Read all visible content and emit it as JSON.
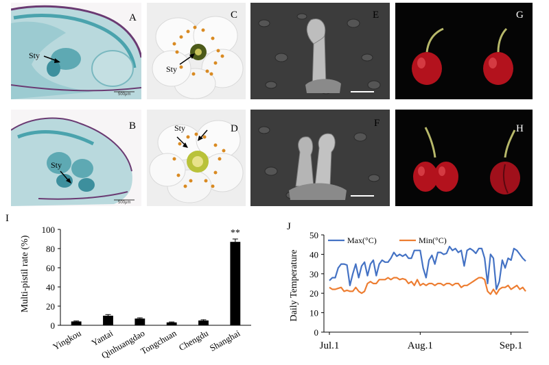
{
  "panels": {
    "A": {
      "label": "A",
      "annotation": "Sty",
      "scalebar": "500μm"
    },
    "B": {
      "label": "B",
      "annotation": "Sty",
      "scalebar": "500μm"
    },
    "C": {
      "label": "C",
      "annotation": "Sty"
    },
    "D": {
      "label": "D",
      "annotation": "Sty"
    },
    "E": {
      "label": "E"
    },
    "F": {
      "label": "F"
    },
    "G": {
      "label": "G"
    },
    "H": {
      "label": "H"
    }
  },
  "chart_data": [
    {
      "id": "I",
      "panel_label": "I",
      "type": "bar",
      "categories": [
        "Yingkou",
        "Yantai",
        "Qinhuangdao",
        "Tongchuan",
        "Chengdu",
        "Shanghai"
      ],
      "values": [
        4,
        10,
        7,
        3,
        5,
        87
      ],
      "errors": [
        0.5,
        1.2,
        0.8,
        0.5,
        0.8,
        3
      ],
      "annotations": [
        "",
        "",
        "",
        "",
        "",
        "**"
      ],
      "ylabel": "Multi-pistil rate (%)",
      "ylim": [
        0,
        100
      ],
      "yticks": [
        0,
        20,
        40,
        60,
        80,
        100
      ],
      "bar_color": "#000000"
    },
    {
      "id": "J",
      "panel_label": "J",
      "type": "line",
      "ylabel": "Daily  Temperature",
      "ylim": [
        0,
        50
      ],
      "yticks": [
        0,
        10,
        20,
        30,
        40,
        50
      ],
      "x_tick_labels": [
        "Jul.1",
        "Aug.1",
        "Sep.1"
      ],
      "x_tick_days": [
        0,
        31,
        62
      ],
      "legend_position": "top-left",
      "series": [
        {
          "name": "Max(°C)",
          "color": "#4472C4",
          "values": [
            26.5,
            28,
            28,
            33,
            35,
            35,
            34.5,
            24,
            30,
            35,
            28,
            34,
            36,
            29,
            35,
            37,
            29,
            35,
            37,
            36,
            36,
            38,
            41,
            39,
            40,
            39,
            40,
            38,
            38,
            42,
            42,
            42,
            33,
            28,
            37,
            39.5,
            35,
            41,
            41,
            40,
            40.5,
            44,
            42,
            43,
            41,
            42,
            34,
            42,
            43,
            42,
            40.5,
            43,
            43,
            38,
            25,
            40,
            38,
            22,
            26,
            37,
            33,
            38,
            37,
            43,
            42,
            40,
            38,
            36.5
          ]
        },
        {
          "name": "Min(°C)",
          "color": "#ED7D31",
          "values": [
            23,
            22,
            22,
            22.5,
            23,
            21,
            21.5,
            21,
            21,
            23,
            21,
            20,
            21,
            25,
            26,
            25,
            25,
            27,
            27,
            27,
            28,
            27,
            28,
            28,
            27,
            27.5,
            27,
            25,
            26,
            24,
            27,
            24,
            25,
            24,
            25,
            25,
            24,
            25,
            25,
            24,
            25,
            25,
            24,
            25,
            25,
            23,
            24,
            24,
            25,
            26,
            27,
            28,
            28,
            27,
            21,
            19.5,
            22,
            19.5,
            22,
            23,
            23,
            24,
            22,
            23,
            24,
            22,
            23,
            21
          ]
        }
      ]
    }
  ]
}
